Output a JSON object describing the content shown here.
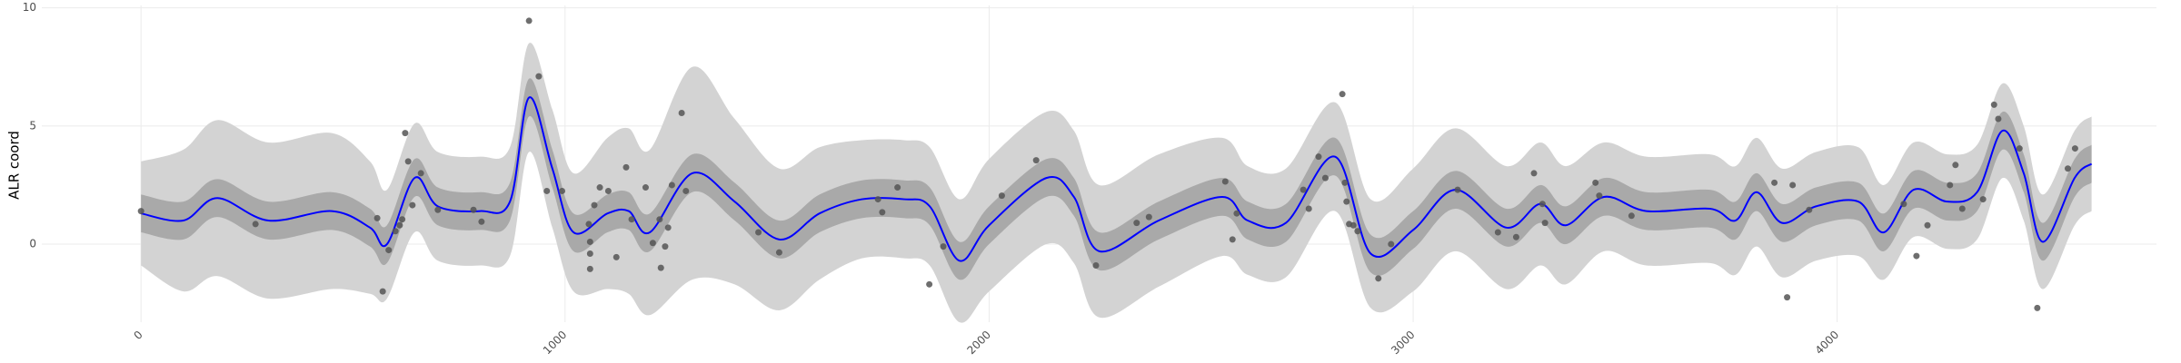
{
  "chart_data": {
    "type": "ribbon-scatter",
    "y_label": "ALR coord",
    "xlim": [
      -234,
      4753
    ],
    "ylim": [
      -3.3,
      10.1
    ],
    "xticks": [
      0,
      1000,
      2000,
      3000,
      4000
    ],
    "yticks": [
      0,
      5,
      10
    ],
    "grid": true,
    "x": [
      0,
      100,
      180,
      300,
      450,
      540,
      580,
      645,
      700,
      800,
      870,
      915,
      970,
      1020,
      1100,
      1150,
      1200,
      1300,
      1400,
      1505,
      1600,
      1700,
      1800,
      1860,
      1930,
      2000,
      2135,
      2200,
      2260,
      2400,
      2550,
      2610,
      2700,
      2816,
      2900,
      3000,
      3100,
      3220,
      3300,
      3360,
      3450,
      3550,
      3700,
      3760,
      3810,
      3870,
      3950,
      4050,
      4110,
      4180,
      4260,
      4330,
      4390,
      4440,
      4485,
      4560,
      4600
    ],
    "ribbons": [
      {
        "color": "#d3d3d3",
        "upper": [
          3.5,
          4.0,
          5.25,
          4.3,
          4.7,
          3.5,
          2.3,
          5.1,
          3.9,
          3.7,
          4.1,
          8.5,
          5.7,
          3.0,
          4.5,
          4.9,
          4.0,
          7.5,
          5.3,
          3.2,
          4.1,
          4.4,
          4.4,
          4.1,
          1.9,
          3.6,
          5.6,
          4.8,
          2.5,
          3.8,
          4.5,
          3.3,
          3.2,
          6.0,
          1.9,
          3.2,
          4.9,
          3.3,
          4.3,
          3.3,
          4.3,
          3.7,
          3.8,
          3.3,
          4.5,
          3.2,
          3.9,
          4.1,
          2.5,
          4.3,
          3.8,
          4.2,
          6.8,
          5.0,
          2.1,
          4.8,
          5.4
        ],
        "lower": [
          -0.9,
          -2.0,
          -1.35,
          -2.3,
          -1.9,
          -2.1,
          -2.3,
          0.5,
          -0.7,
          -0.9,
          -0.5,
          3.9,
          0.7,
          -2.0,
          -1.9,
          -2.1,
          -3.0,
          -1.5,
          -1.7,
          -2.8,
          -1.5,
          -0.6,
          -0.6,
          -0.9,
          -3.3,
          -2.0,
          0.0,
          -0.8,
          -3.1,
          -1.8,
          -0.5,
          -1.3,
          -1.4,
          1.4,
          -2.7,
          -2.0,
          -0.3,
          -1.9,
          -0.9,
          -1.7,
          -0.3,
          -0.9,
          -0.8,
          -1.3,
          -0.1,
          -1.4,
          -0.7,
          -0.5,
          -1.5,
          0.3,
          -0.2,
          0.2,
          2.8,
          1.0,
          -1.9,
          0.8,
          1.4
        ]
      },
      {
        "color": "#a9a9a9",
        "upper": [
          2.1,
          1.8,
          2.75,
          1.8,
          2.2,
          1.5,
          0.8,
          3.6,
          2.4,
          2.2,
          2.6,
          7.0,
          4.0,
          1.3,
          2.1,
          2.2,
          1.3,
          3.8,
          2.6,
          1.0,
          2.1,
          2.7,
          2.7,
          2.4,
          0.1,
          1.6,
          3.6,
          2.8,
          0.5,
          1.8,
          2.8,
          1.8,
          1.7,
          4.5,
          0.4,
          1.4,
          3.1,
          1.5,
          2.5,
          1.6,
          2.8,
          2.2,
          2.3,
          1.8,
          3.0,
          1.7,
          2.4,
          2.6,
          1.3,
          3.1,
          2.6,
          3.0,
          5.6,
          3.8,
          0.9,
          3.6,
          4.2
        ],
        "lower": [
          0.5,
          0.2,
          1.15,
          0.2,
          0.6,
          -0.1,
          -0.8,
          2.0,
          0.8,
          0.6,
          1.0,
          5.4,
          2.4,
          -0.3,
          0.5,
          0.6,
          -0.3,
          2.2,
          1.0,
          -0.6,
          0.5,
          1.1,
          1.1,
          0.8,
          -1.5,
          0.0,
          2.0,
          1.2,
          -1.1,
          0.2,
          1.2,
          0.2,
          0.1,
          2.9,
          -1.2,
          -0.2,
          1.5,
          -0.1,
          0.9,
          0.0,
          1.2,
          0.6,
          0.7,
          0.2,
          1.4,
          0.1,
          0.8,
          1.0,
          -0.3,
          1.5,
          1.0,
          1.4,
          4.0,
          2.2,
          -0.7,
          2.0,
          2.6
        ]
      }
    ],
    "line": {
      "color": "#0000ff",
      "values": [
        1.3,
        1.0,
        1.95,
        1.0,
        1.4,
        0.7,
        0.0,
        2.8,
        1.6,
        1.4,
        1.8,
        6.2,
        3.2,
        0.5,
        1.3,
        1.4,
        0.5,
        3.0,
        1.8,
        0.2,
        1.3,
        1.9,
        1.9,
        1.6,
        -0.7,
        0.8,
        2.8,
        2.0,
        -0.3,
        1.0,
        2.0,
        1.0,
        0.9,
        3.7,
        -0.4,
        0.6,
        2.3,
        0.7,
        1.7,
        0.8,
        2.0,
        1.4,
        1.5,
        1.0,
        2.2,
        0.9,
        1.6,
        1.8,
        0.5,
        2.3,
        1.8,
        2.2,
        4.8,
        3.0,
        0.1,
        2.8,
        3.4
      ]
    },
    "points": {
      "color": "#555555",
      "x": [
        0,
        270,
        557,
        570,
        584,
        600,
        610,
        616,
        623,
        630,
        640,
        660,
        700,
        784,
        803,
        915,
        938,
        957,
        993,
        1056,
        1059,
        1059,
        1059,
        1069,
        1082,
        1102,
        1121,
        1144,
        1157,
        1190,
        1207,
        1223,
        1226,
        1236,
        1243,
        1252,
        1275,
        1285,
        1456,
        1505,
        1738,
        1748,
        1784,
        1859,
        1892,
        2030,
        2111,
        2252,
        2348,
        2377,
        2557,
        2574,
        2584,
        2741,
        2754,
        2777,
        2793,
        2833,
        2839,
        2843,
        2849,
        2859,
        2869,
        2918,
        2948,
        3105,
        3200,
        3243,
        3285,
        3305,
        3311,
        3430,
        3439,
        3515,
        3852,
        3882,
        3895,
        3934,
        4157,
        4187,
        4213,
        4266,
        4279,
        4295,
        4344,
        4370,
        4380,
        4430,
        4472,
        4544,
        4561
      ],
      "y": [
        1.4,
        0.85,
        1.1,
        -2.0,
        -0.25,
        0.55,
        0.8,
        1.05,
        4.7,
        3.5,
        1.65,
        3.0,
        1.45,
        1.45,
        0.95,
        9.45,
        7.1,
        2.25,
        2.25,
        0.85,
        0.1,
        -0.4,
        -1.05,
        1.65,
        2.4,
        2.25,
        -0.55,
        3.25,
        1.05,
        2.4,
        0.05,
        1.05,
        -1.0,
        -0.1,
        0.7,
        2.5,
        5.55,
        2.25,
        0.5,
        -0.35,
        1.9,
        1.35,
        2.4,
        -1.7,
        -0.1,
        2.05,
        3.55,
        -0.9,
        0.9,
        1.15,
        2.65,
        0.2,
        1.3,
        2.3,
        1.5,
        3.7,
        2.8,
        6.35,
        2.6,
        1.8,
        0.85,
        0.8,
        0.55,
        -1.45,
        0.0,
        2.3,
        0.5,
        0.3,
        3.0,
        1.7,
        0.9,
        2.6,
        2.05,
        1.2,
        2.6,
        -2.25,
        2.5,
        1.45,
        1.7,
        -0.5,
        0.8,
        2.5,
        3.35,
        1.5,
        1.9,
        5.9,
        5.3,
        4.05,
        -2.7,
        3.2,
        4.05
      ]
    }
  }
}
